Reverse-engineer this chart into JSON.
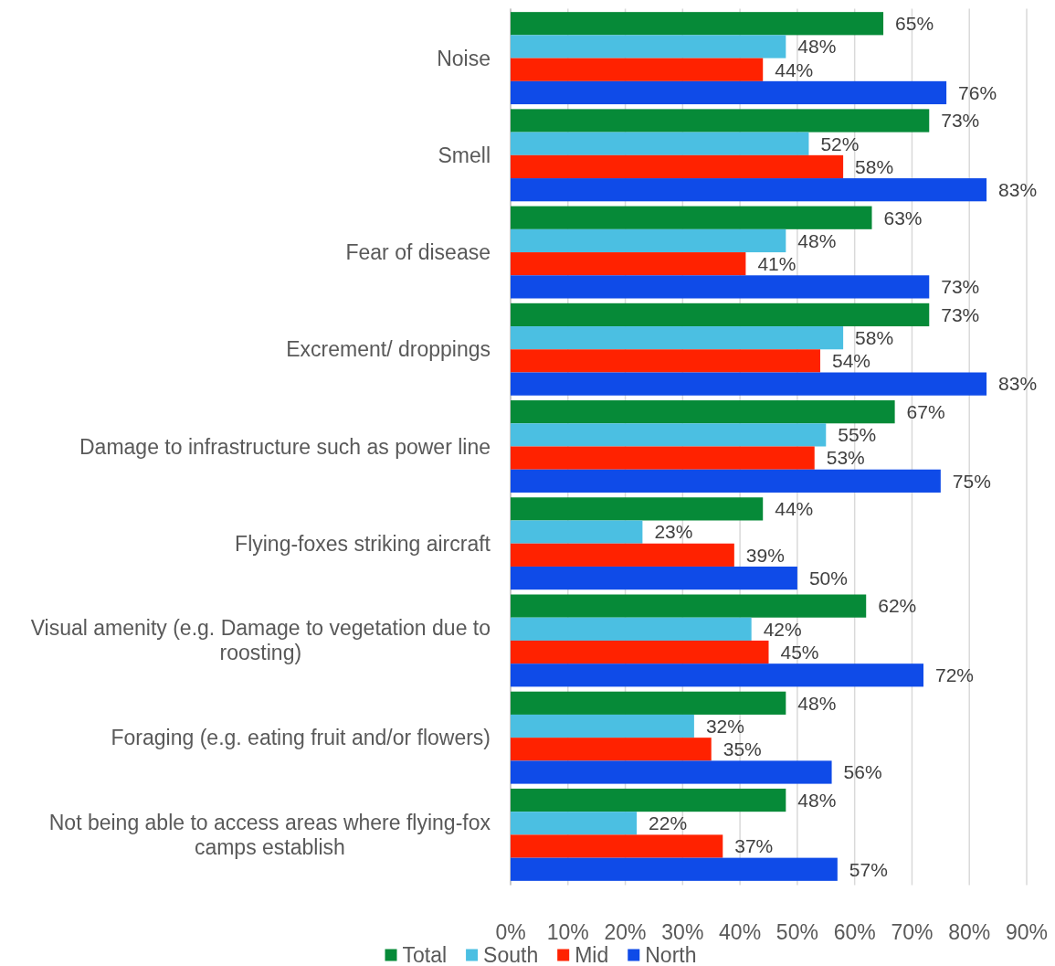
{
  "chart_data": {
    "type": "bar",
    "orientation": "horizontal",
    "categories": [
      "Noise",
      "Smell",
      "Fear of disease",
      "Excrement/ droppings",
      "Damage to infrastructure such as power line",
      "Flying-foxes striking aircraft",
      "Visual amenity (e.g. Damage to vegetation due to roosting)",
      "Foraging (e.g. eating fruit and/or flowers)",
      "Not being able to access areas where flying-fox camps establish"
    ],
    "series": [
      {
        "name": "Total",
        "color": "#068a38",
        "values": [
          65,
          73,
          63,
          73,
          67,
          44,
          62,
          48,
          48
        ],
        "value_labels": [
          "65%",
          "73%",
          "63%",
          "73%",
          "67%",
          "44%",
          "62%",
          "48%",
          "48%"
        ]
      },
      {
        "name": "South",
        "color": "#4bbfe2",
        "values": [
          48,
          52,
          48,
          58,
          55,
          23,
          42,
          32,
          22
        ],
        "value_labels": [
          "48%",
          "52%",
          "48%",
          "58%",
          "55%",
          "23%",
          "42%",
          "32%",
          "22%"
        ]
      },
      {
        "name": "Mid",
        "color": "#ff2200",
        "values": [
          44,
          58,
          41,
          54,
          53,
          39,
          45,
          35,
          37
        ],
        "value_labels": [
          "44%",
          "58%",
          "41%",
          "54%",
          "53%",
          "39%",
          "45%",
          "35%",
          "37%"
        ]
      },
      {
        "name": "North",
        "color": "#0f4be8",
        "values": [
          76,
          83,
          73,
          83,
          75,
          50,
          72,
          56,
          57
        ],
        "value_labels": [
          "76%",
          "83%",
          "73%",
          "83%",
          "75%",
          "50%",
          "72%",
          "56%",
          "57%"
        ]
      }
    ],
    "xlim": [
      0,
      90
    ],
    "xticks": [
      {
        "value": 0,
        "label": "0%"
      },
      {
        "value": 10,
        "label": "10%"
      },
      {
        "value": 20,
        "label": "20%"
      },
      {
        "value": 30,
        "label": "30%"
      },
      {
        "value": 40,
        "label": "40%"
      },
      {
        "value": 50,
        "label": "50%"
      },
      {
        "value": 60,
        "label": "60%"
      },
      {
        "value": 70,
        "label": "70%"
      },
      {
        "value": 80,
        "label": "80%"
      },
      {
        "value": 90,
        "label": "90%"
      }
    ],
    "grid": "x",
    "legend": "bottom"
  }
}
